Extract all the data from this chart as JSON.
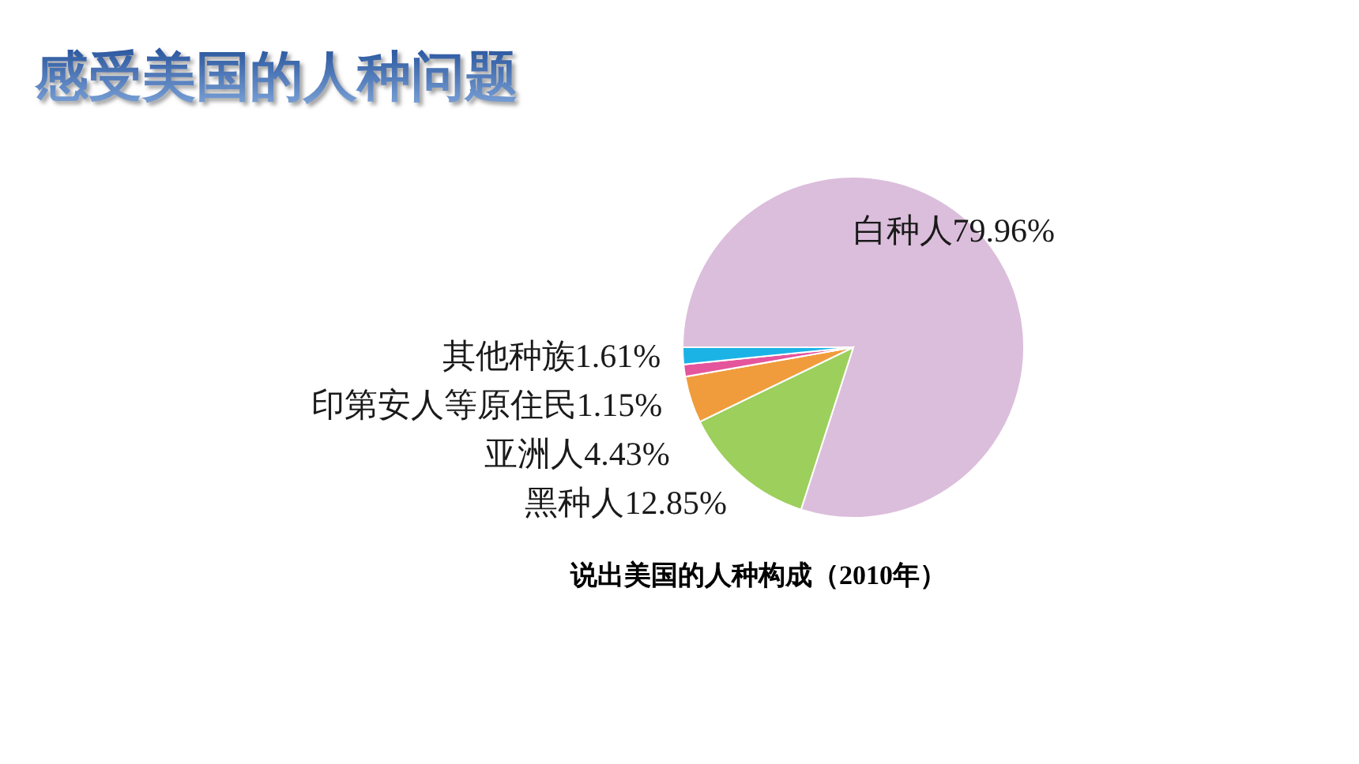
{
  "chart_data": {
    "type": "pie",
    "title": "感受美国的人种问题",
    "categories": [
      "白种人",
      "黑种人",
      "亚洲人",
      "印第安人等原住民",
      "其他种族"
    ],
    "values": [
      79.96,
      12.85,
      4.43,
      1.15,
      1.61
    ],
    "colors": [
      "#dbbedb",
      "#9ccf5c",
      "#f09c3c",
      "#e4559c",
      "#1bb3e6"
    ],
    "value_labels": [
      "79.96%",
      "12.85%",
      "4.43%",
      "1.15%",
      "1.61%"
    ],
    "annotations": [
      "说出美国的人种构成（2010年）"
    ]
  }
}
